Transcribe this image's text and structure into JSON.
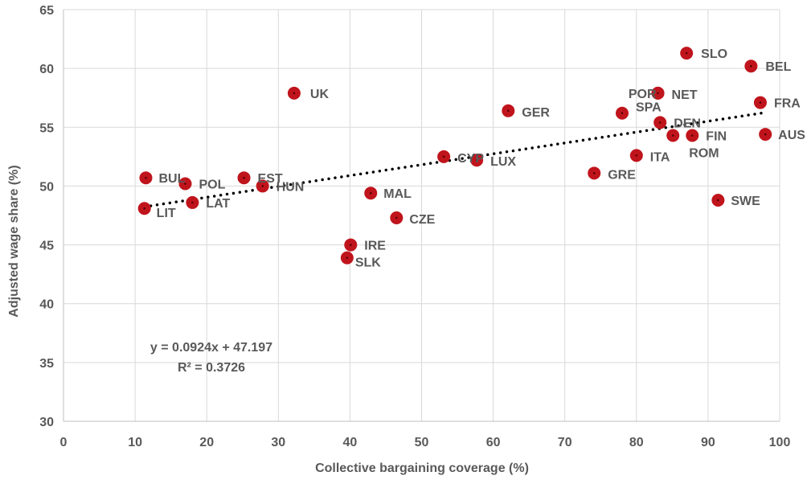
{
  "chart_data": {
    "type": "scatter",
    "xlabel": "Collective bargaining coverage (%)",
    "ylabel": "Adjusted wage share (%)",
    "xlim": [
      0,
      100
    ],
    "ylim": [
      30,
      65
    ],
    "x_ticks": [
      0,
      10,
      20,
      30,
      40,
      50,
      60,
      70,
      80,
      90,
      100
    ],
    "y_ticks": [
      30,
      35,
      40,
      45,
      50,
      55,
      60,
      65
    ],
    "grid": "horizontal and vertical",
    "marker_color": "#c0141c",
    "trendline": {
      "type": "linear",
      "slope": 0.0924,
      "intercept": 47.197,
      "x_range": [
        11.3,
        98
      ],
      "style": "dotted",
      "color": "#000000",
      "equation_label": "y = 0.0924x + 47.197",
      "r2_label": "R² = 0.3726"
    },
    "points": [
      {
        "label": "UK",
        "x": 32.2,
        "y": 57.9
      },
      {
        "label": "SLO",
        "x": 87.0,
        "y": 61.3
      },
      {
        "label": "BEL",
        "x": 96.0,
        "y": 60.2
      },
      {
        "label": "POR",
        "x": 83.0,
        "y": 57.9
      },
      {
        "label": "NET",
        "x": 83.0,
        "y": 57.9
      },
      {
        "label": "FRA",
        "x": 97.3,
        "y": 57.1
      },
      {
        "label": "GER",
        "x": 62.1,
        "y": 56.4
      },
      {
        "label": "SPA",
        "x": 78.0,
        "y": 56.2
      },
      {
        "label": "DEN",
        "x": 83.3,
        "y": 55.4
      },
      {
        "label": "AUS",
        "x": 98.0,
        "y": 54.4
      },
      {
        "label": "FIN",
        "x": 87.8,
        "y": 54.3
      },
      {
        "label": "ROM",
        "x": 85.1,
        "y": 54.3
      },
      {
        "label": "ITA",
        "x": 80.0,
        "y": 52.6
      },
      {
        "label": "CYP",
        "x": 53.1,
        "y": 52.5
      },
      {
        "label": "LUX",
        "x": 57.7,
        "y": 52.2
      },
      {
        "label": "GRE",
        "x": 74.1,
        "y": 51.1
      },
      {
        "label": "BUL",
        "x": 11.5,
        "y": 50.7
      },
      {
        "label": "EST",
        "x": 25.2,
        "y": 50.7
      },
      {
        "label": "POL",
        "x": 17.0,
        "y": 50.2
      },
      {
        "label": "HUN",
        "x": 27.8,
        "y": 50.0
      },
      {
        "label": "MAL",
        "x": 42.9,
        "y": 49.4
      },
      {
        "label": "SWE",
        "x": 91.4,
        "y": 48.8
      },
      {
        "label": "LAT",
        "x": 18.0,
        "y": 48.6
      },
      {
        "label": "LIT",
        "x": 11.3,
        "y": 48.1
      },
      {
        "label": "CZE",
        "x": 46.5,
        "y": 47.3
      },
      {
        "label": "IRE",
        "x": 40.1,
        "y": 45.0
      },
      {
        "label": "SLK",
        "x": 39.6,
        "y": 43.9
      }
    ]
  }
}
